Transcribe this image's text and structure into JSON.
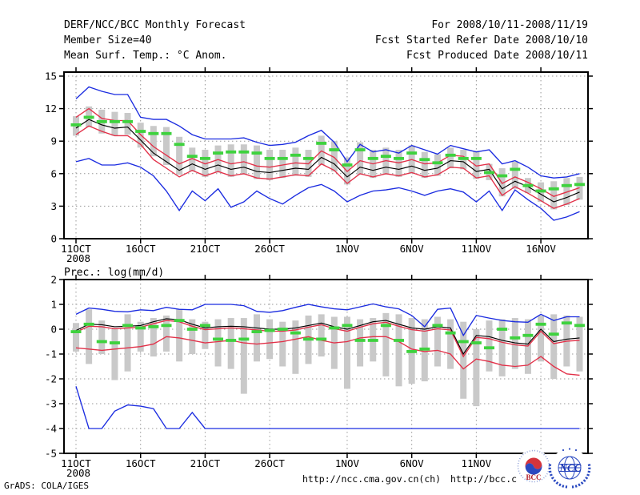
{
  "header": {
    "left_lines": [
      "DERF/NCC/BCC Monthly Forecast",
      "Member Size=40"
    ],
    "right_lines": [
      "For 2008/10/11-2008/11/19",
      "Fcst Started Refer Date 2008/10/10",
      "Fcst Produced Date 2008/10/11"
    ]
  },
  "footer": {
    "grads_credit": "GrADS: COLA/IGES",
    "url_ncc": "http://ncc.cma.gov.cn(ch)",
    "url_bcc": "http://bcc.c",
    "bcc_logo_label": "BCC",
    "ncc_logo_label": "NCC"
  },
  "colors": {
    "blue": "#1b2ce0",
    "red": "#e23048",
    "black": "#000000",
    "green": "#3ed23e",
    "gray_bar": "#c9c9c9",
    "grid": "#999999"
  },
  "chart_data": [
    {
      "type": "line",
      "title": "Mean Surf. Temp.: °C Anom.",
      "ylim": [
        0,
        15
      ],
      "yticks": [
        0,
        3,
        6,
        9,
        12,
        15
      ],
      "grid": true,
      "legend_position": "none",
      "x_ticks": [
        {
          "label": "11OCT",
          "sub": "2008",
          "day": 0
        },
        {
          "label": "16OCT",
          "day": 5
        },
        {
          "label": "21OCT",
          "day": 10
        },
        {
          "label": "26OCT",
          "day": 15
        },
        {
          "label": "1NOV",
          "day": 21
        },
        {
          "label": "6NOV",
          "day": 26
        },
        {
          "label": "11NOV",
          "day": 31
        },
        {
          "label": "16NOV",
          "day": 36
        }
      ],
      "series": [
        {
          "name": "blue-upper-envelope",
          "color_key": "blue",
          "values": [
            12.9,
            14.0,
            13.6,
            13.3,
            13.3,
            11.2,
            11.0,
            11.0,
            10.4,
            9.6,
            9.2,
            9.2,
            9.2,
            9.3,
            8.9,
            8.6,
            8.7,
            8.9,
            9.5,
            10.0,
            8.9,
            7.1,
            8.7,
            8.0,
            8.2,
            7.9,
            8.6,
            8.2,
            7.8,
            8.6,
            8.3,
            8.0,
            8.2,
            6.9,
            7.2,
            6.6,
            5.8,
            5.6,
            5.7,
            6.0
          ]
        },
        {
          "name": "blue-lower-envelope",
          "color_key": "blue",
          "values": [
            7.1,
            7.4,
            6.8,
            6.8,
            7.0,
            6.6,
            5.8,
            4.4,
            2.6,
            4.4,
            3.5,
            4.6,
            2.9,
            3.4,
            4.4,
            3.7,
            3.2,
            4.0,
            4.7,
            5.0,
            4.4,
            3.4,
            4.0,
            4.4,
            4.5,
            4.7,
            4.4,
            4.0,
            4.4,
            4.6,
            4.3,
            3.4,
            4.4,
            2.6,
            4.5,
            3.6,
            2.8,
            1.7,
            2.0,
            2.5
          ]
        },
        {
          "name": "red-upper-band",
          "color_key": "red",
          "values": [
            11.2,
            12.0,
            11.1,
            10.9,
            10.9,
            9.6,
            8.5,
            7.7,
            6.9,
            7.4,
            6.9,
            7.3,
            6.9,
            7.1,
            6.7,
            6.6,
            6.8,
            7.0,
            6.9,
            8.1,
            7.5,
            6.2,
            7.2,
            6.9,
            7.2,
            7.0,
            7.3,
            6.9,
            7.0,
            7.7,
            7.6,
            6.7,
            6.9,
            5.1,
            5.7,
            5.2,
            4.6,
            3.9,
            4.3,
            4.7
          ]
        },
        {
          "name": "red-lower-band",
          "color_key": "red",
          "values": [
            9.6,
            10.4,
            9.9,
            9.5,
            9.5,
            8.7,
            7.3,
            6.5,
            5.7,
            6.3,
            5.8,
            6.2,
            5.8,
            6.0,
            5.6,
            5.5,
            5.7,
            5.9,
            5.8,
            6.9,
            6.3,
            5.1,
            6.0,
            5.7,
            6.0,
            5.8,
            6.1,
            5.7,
            5.9,
            6.6,
            6.5,
            5.6,
            5.8,
            4.0,
            4.8,
            4.2,
            3.5,
            2.8,
            3.2,
            3.7
          ]
        },
        {
          "name": "ensemble-mean",
          "color_key": "black",
          "values": [
            10.2,
            11.0,
            10.5,
            10.2,
            10.3,
            9.1,
            7.9,
            7.1,
            6.3,
            6.9,
            6.4,
            6.8,
            6.4,
            6.6,
            6.2,
            6.1,
            6.3,
            6.5,
            6.4,
            7.5,
            6.9,
            5.7,
            6.6,
            6.3,
            6.6,
            6.4,
            6.7,
            6.3,
            6.5,
            7.2,
            7.1,
            6.2,
            6.4,
            4.6,
            5.3,
            4.8,
            4.1,
            3.4,
            3.8,
            4.3
          ]
        }
      ],
      "dashes": {
        "name": "green-dash-marks",
        "color_key": "green",
        "values": [
          10.5,
          11.2,
          10.8,
          10.8,
          10.8,
          9.9,
          9.7,
          9.7,
          8.7,
          7.6,
          7.4,
          7.9,
          8.0,
          8.0,
          7.9,
          7.4,
          7.4,
          7.7,
          7.4,
          8.8,
          8.2,
          6.8,
          8.2,
          7.4,
          7.6,
          7.4,
          7.9,
          7.3,
          7.0,
          7.7,
          7.4,
          7.4,
          6.1,
          5.8,
          6.4,
          4.9,
          4.4,
          4.6,
          4.9,
          5.0
        ]
      },
      "bars": {
        "name": "gray-spread-bars",
        "hi": [
          11.3,
          12.2,
          11.9,
          11.7,
          11.6,
          10.7,
          10.4,
          10.3,
          9.4,
          8.4,
          8.2,
          8.6,
          8.7,
          8.7,
          8.6,
          8.2,
          8.2,
          8.4,
          8.2,
          9.5,
          9.0,
          7.5,
          8.9,
          8.2,
          8.4,
          8.2,
          8.6,
          8.0,
          7.8,
          8.4,
          8.2,
          8.1,
          6.9,
          6.5,
          7.1,
          5.6,
          5.2,
          5.3,
          5.6,
          5.7
        ],
        "lo": [
          9.5,
          10.3,
          9.7,
          9.5,
          9.6,
          8.4,
          7.6,
          6.8,
          5.9,
          6.2,
          5.7,
          6.1,
          5.7,
          5.9,
          5.5,
          5.4,
          5.6,
          5.8,
          5.7,
          6.8,
          6.2,
          5.0,
          5.9,
          5.6,
          5.9,
          5.7,
          6.0,
          5.6,
          5.8,
          6.5,
          6.4,
          5.5,
          5.4,
          3.9,
          4.6,
          4.2,
          3.4,
          2.7,
          3.1,
          3.6
        ]
      }
    },
    {
      "type": "line",
      "title": "Prec.: log(mm/d)",
      "ylim": [
        -5,
        2
      ],
      "yticks": [
        2,
        1,
        0,
        -1,
        -2,
        -3,
        -4,
        -5
      ],
      "grid": true,
      "legend_position": "none",
      "x_ticks": [
        {
          "label": "11OCT",
          "sub": "2008",
          "day": 0
        },
        {
          "label": "16OCT",
          "day": 5
        },
        {
          "label": "21OCT",
          "day": 10
        },
        {
          "label": "26OCT",
          "day": 15
        },
        {
          "label": "1NOV",
          "day": 21
        },
        {
          "label": "6NOV",
          "day": 26
        },
        {
          "label": "11NOV",
          "day": 31
        },
        {
          "label": "",
          "day": 36
        }
      ],
      "series": [
        {
          "name": "blue-upper-envelope",
          "color_key": "blue",
          "values": [
            0.6,
            0.85,
            0.8,
            0.72,
            0.7,
            0.78,
            0.75,
            0.88,
            0.8,
            0.78,
            1.0,
            1.0,
            1.0,
            0.95,
            0.72,
            0.68,
            0.75,
            0.88,
            1.0,
            0.9,
            0.82,
            0.78,
            0.9,
            1.02,
            0.9,
            0.82,
            0.55,
            0.1,
            0.8,
            0.85,
            -0.25,
            0.55,
            0.45,
            0.35,
            0.3,
            0.28,
            0.6,
            0.35,
            0.5,
            0.5
          ]
        },
        {
          "name": "blue-lower-envelope",
          "color_key": "blue",
          "values": [
            -2.3,
            -4.0,
            -4.0,
            -3.3,
            -3.05,
            -3.1,
            -3.2,
            -4.0,
            -4.0,
            -3.35,
            -4.0,
            -4.0,
            -4.0,
            -4.0,
            -4.0,
            -4.0,
            -4.0,
            -4.0,
            -4.0,
            -4.0,
            -4.0,
            -4.0,
            -4.0,
            -4.0,
            -4.0,
            -4.0,
            -4.0,
            -4.0,
            -4.0,
            -4.0,
            -4.0,
            -4.0,
            -4.0,
            -4.0,
            -4.0,
            -4.0,
            -4.0,
            -4.0,
            -4.0,
            -4.0
          ]
        },
        {
          "name": "red-upper-band",
          "color_key": "red",
          "values": [
            -0.12,
            0.12,
            0.1,
            0.02,
            0.05,
            0.08,
            0.22,
            0.35,
            0.3,
            0.12,
            -0.02,
            0.02,
            0.05,
            0.02,
            -0.03,
            -0.08,
            -0.08,
            -0.03,
            0.08,
            0.18,
            0.02,
            -0.08,
            0.08,
            0.22,
            0.28,
            0.12,
            -0.02,
            -0.08,
            0.02,
            -0.03,
            -1.1,
            -0.33,
            -0.38,
            -0.53,
            -0.63,
            -0.68,
            -0.08,
            -0.58,
            -0.48,
            -0.45
          ]
        },
        {
          "name": "red-lower-band",
          "color_key": "red",
          "values": [
            -0.75,
            -0.8,
            -0.85,
            -0.8,
            -0.75,
            -0.7,
            -0.6,
            -0.3,
            -0.35,
            -0.45,
            -0.55,
            -0.5,
            -0.45,
            -0.55,
            -0.6,
            -0.55,
            -0.5,
            -0.4,
            -0.3,
            -0.45,
            -0.55,
            -0.5,
            -0.35,
            -0.3,
            -0.3,
            -0.5,
            -0.8,
            -0.9,
            -0.85,
            -1.0,
            -1.6,
            -1.2,
            -1.3,
            -1.45,
            -1.5,
            -1.45,
            -1.1,
            -1.5,
            -1.8,
            -1.85
          ]
        },
        {
          "name": "ensemble-mean",
          "color_key": "black",
          "values": [
            -0.05,
            0.2,
            0.18,
            0.1,
            0.12,
            0.15,
            0.3,
            0.42,
            0.38,
            0.2,
            0.05,
            0.1,
            0.12,
            0.1,
            0.05,
            0.0,
            0.0,
            0.05,
            0.15,
            0.25,
            0.1,
            0.0,
            0.15,
            0.3,
            0.35,
            0.2,
            0.05,
            0.0,
            0.1,
            0.05,
            -1.0,
            -0.25,
            -0.3,
            -0.45,
            -0.55,
            -0.6,
            0.0,
            -0.5,
            -0.4,
            -0.35
          ]
        }
      ],
      "dashes": {
        "name": "green-dash-marks",
        "color_key": "green",
        "values": [
          -0.1,
          0.2,
          -0.5,
          -0.55,
          0.15,
          0.05,
          0.1,
          0.15,
          0.35,
          0.0,
          0.15,
          -0.4,
          -0.45,
          -0.4,
          -0.1,
          -0.05,
          0.0,
          -0.15,
          -0.4,
          -0.4,
          0.05,
          0.15,
          -0.45,
          -0.45,
          0.15,
          -0.45,
          -0.9,
          -0.8,
          0.15,
          -0.15,
          -0.5,
          -0.55,
          -0.75,
          0.0,
          -0.35,
          -0.25,
          0.2,
          -0.2,
          0.25,
          0.15
        ]
      },
      "bars": {
        "name": "gray-spread-bars",
        "hi": [
          0.25,
          0.8,
          0.35,
          0.0,
          0.6,
          0.3,
          0.45,
          0.55,
          0.8,
          0.4,
          0.3,
          0.4,
          0.45,
          0.45,
          0.6,
          0.4,
          0.3,
          0.35,
          0.55,
          0.6,
          0.5,
          0.5,
          0.4,
          0.45,
          0.65,
          0.6,
          0.45,
          0.4,
          0.5,
          0.4,
          0.3,
          0.0,
          0.35,
          0.4,
          0.45,
          0.4,
          0.55,
          0.6,
          0.55,
          0.5
        ],
        "lo": [
          -0.9,
          -1.4,
          -1.0,
          -2.05,
          -1.7,
          -0.9,
          -1.1,
          -0.9,
          -1.3,
          -1.0,
          -0.8,
          -1.5,
          -1.6,
          -2.6,
          -1.3,
          -1.2,
          -1.5,
          -1.8,
          -1.4,
          -1.1,
          -1.6,
          -2.4,
          -1.5,
          -1.3,
          -1.9,
          -2.3,
          -2.2,
          -2.1,
          -1.5,
          -1.6,
          -2.8,
          -3.1,
          -1.7,
          -1.9,
          -1.6,
          -1.8,
          -1.3,
          -2.0,
          -1.5,
          -1.7
        ]
      }
    }
  ]
}
